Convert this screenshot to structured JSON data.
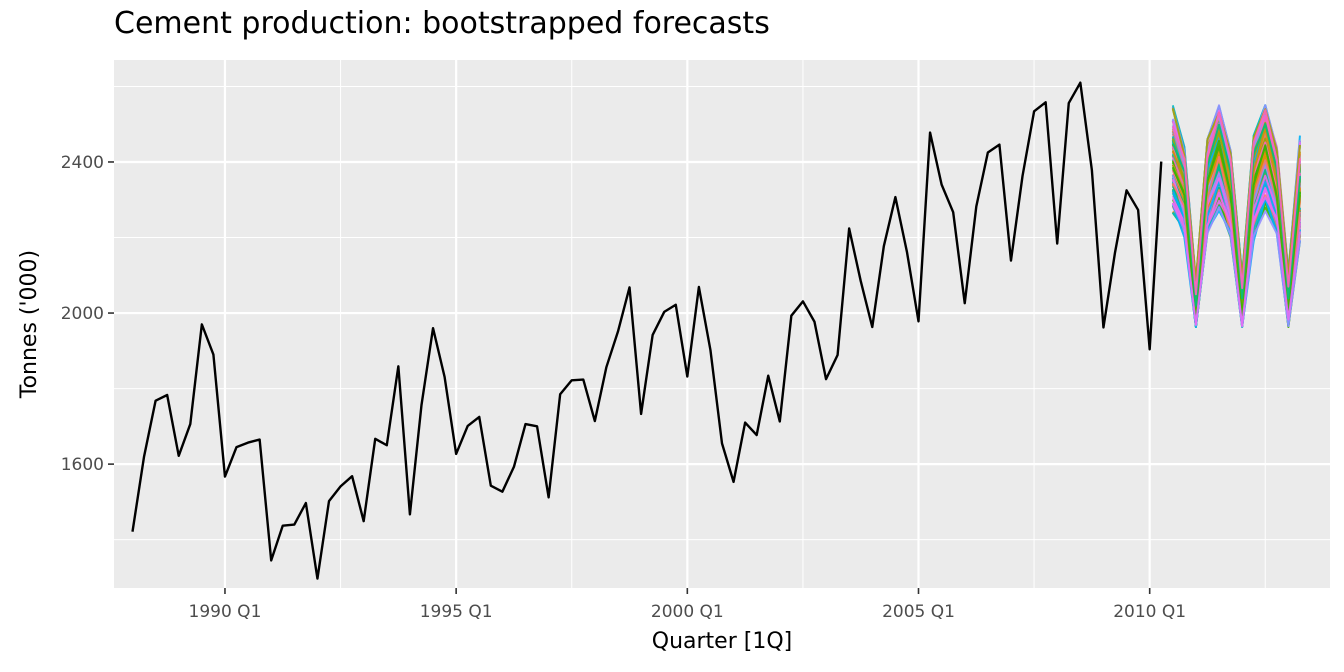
{
  "chart_data": {
    "type": "line",
    "title": "Cement production: bootstrapped forecasts",
    "xlabel": "Quarter [1Q]",
    "ylabel": "Tonnes ('000)",
    "x_ticks": [
      {
        "value": 1990.0,
        "label": "1990 Q1"
      },
      {
        "value": 1995.0,
        "label": "1995 Q1"
      },
      {
        "value": 2000.0,
        "label": "2000 Q1"
      },
      {
        "value": 2005.0,
        "label": "2005 Q1"
      },
      {
        "value": 2010.0,
        "label": "2010 Q1"
      }
    ],
    "y_ticks": [
      1600,
      2000,
      2400
    ],
    "xlim": [
      1987.6,
      2013.9
    ],
    "ylim": [
      1272,
      2670
    ],
    "grid": true,
    "legend": "none",
    "colors": {
      "panel": "#ebebeb",
      "grid": "#ffffff",
      "history": "#000000",
      "bootstrap_palette": [
        "#F8766D",
        "#D89000",
        "#A3A500",
        "#39B600",
        "#00BF7D",
        "#00BFC4",
        "#00B0F6",
        "#9590FF",
        "#E76BF3",
        "#FF62BC"
      ]
    },
    "history": {
      "start": "1988 Q1",
      "values": [
        1421,
        1620,
        1768,
        1783,
        1622,
        1706,
        1970,
        1890,
        1567,
        1645,
        1657,
        1665,
        1345,
        1437,
        1440,
        1497,
        1297,
        1502,
        1541,
        1568,
        1449,
        1667,
        1650,
        1859,
        1467,
        1756,
        1960,
        1831,
        1627,
        1701,
        1725,
        1543,
        1527,
        1593,
        1706,
        1700,
        1512,
        1785,
        1822,
        1824,
        1714,
        1857,
        1951,
        2068,
        1733,
        1942,
        2003,
        2022,
        1832,
        2069,
        1902,
        1655,
        1553,
        1710,
        1677,
        1834,
        1713,
        1993,
        2031,
        1977,
        1825,
        1889,
        2224,
        2085,
        1963,
        2177,
        2307,
        2162,
        1978,
        2478,
        2340,
        2267,
        2026,
        2282,
        2425,
        2446,
        2139,
        2363,
        2534,
        2558,
        2184,
        2556,
        2610,
        2378,
        1962,
        2160,
        2325,
        2273,
        1904,
        2401
      ]
    },
    "bootstrap": {
      "start": "2010 Q3",
      "count": 100,
      "baseline": [
        2410,
        2326,
        1990,
        2370,
        2470,
        2330,
        2000,
        2380,
        2480,
        2340,
        2010,
        2330
      ],
      "envelope_low": [
        2265,
        2200,
        1963,
        2200,
        2270,
        2200,
        1963,
        2190,
        2270,
        2210,
        1963,
        2190
      ],
      "envelope_high": [
        2550,
        2440,
        2090,
        2460,
        2550,
        2430,
        2100,
        2470,
        2550,
        2440,
        2110,
        2470
      ]
    }
  }
}
